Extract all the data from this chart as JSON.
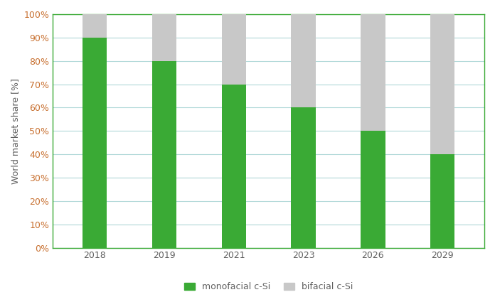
{
  "years": [
    "2018",
    "2019",
    "2021",
    "2023",
    "2026",
    "2029"
  ],
  "monofacial": [
    90,
    80,
    70,
    60,
    50,
    40
  ],
  "bifacial": [
    10,
    20,
    30,
    40,
    50,
    60
  ],
  "monofacial_color": "#3aaa35",
  "bifacial_color": "#c8c8c8",
  "ylabel": "World market share [%]",
  "yticks": [
    0,
    10,
    20,
    30,
    40,
    50,
    60,
    70,
    80,
    90,
    100
  ],
  "ytick_labels": [
    "0%",
    "10%",
    "20%",
    "30%",
    "40%",
    "50%",
    "60%",
    "70%",
    "80%",
    "90%",
    "100%"
  ],
  "legend_monofacial": "monofacial c-Si",
  "legend_bifacial": "bifacial c-Si",
  "spine_color": "#3aaa35",
  "grid_color": "#b0d8d8",
  "tick_label_color": "#c87030",
  "ylabel_color": "#606060",
  "xlabel_color": "#606060",
  "bar_width": 0.35,
  "figsize": [
    6.96,
    4.25
  ],
  "dpi": 100
}
